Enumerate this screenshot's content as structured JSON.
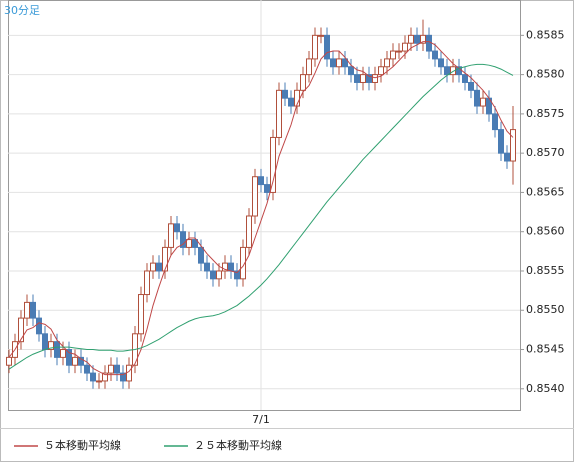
{
  "chart_data": {
    "type": "candlestick",
    "title": "30分足",
    "categories": [
      null,
      null,
      null,
      null,
      null,
      null,
      null,
      null,
      null,
      null,
      null,
      null,
      null,
      null,
      null,
      null,
      null,
      null,
      null,
      null,
      null,
      null,
      null,
      null,
      null,
      null,
      null,
      null,
      null,
      null,
      null,
      null,
      null,
      null,
      null,
      null,
      null,
      null,
      null,
      null,
      null,
      null,
      "7/1",
      null,
      null,
      null,
      null,
      null,
      null,
      null,
      null,
      null,
      null,
      null,
      null,
      null,
      null,
      null,
      null,
      null,
      null,
      null,
      null,
      null,
      null,
      null,
      null,
      null,
      null,
      null,
      null,
      null,
      null,
      null,
      null,
      null,
      null,
      null,
      null,
      null,
      null,
      null,
      null,
      null,
      null
    ],
    "open": [
      0.8543,
      0.8544,
      0.8546,
      0.8549,
      0.8551,
      0.8549,
      0.8547,
      0.8545,
      0.8546,
      0.8544,
      0.8545,
      0.8543,
      0.8544,
      0.8543,
      0.8542,
      0.8541,
      0.8541,
      0.8542,
      0.8543,
      0.8542,
      0.8541,
      0.8543,
      0.8547,
      0.8552,
      0.8555,
      0.8556,
      0.8555,
      0.8558,
      0.8561,
      0.856,
      0.8558,
      0.8559,
      0.8558,
      0.8556,
      0.8555,
      0.8554,
      0.8555,
      0.8556,
      0.8555,
      0.8554,
      0.8558,
      0.8562,
      0.8567,
      0.8566,
      0.8565,
      0.8572,
      0.8578,
      0.8577,
      0.8576,
      0.8578,
      0.858,
      0.8582,
      0.8585,
      0.8585,
      0.8582,
      0.8581,
      0.8582,
      0.8581,
      0.858,
      0.8579,
      0.858,
      0.8579,
      0.858,
      0.8581,
      0.8582,
      0.8583,
      0.8583,
      0.8584,
      0.8585,
      0.8584,
      0.8585,
      0.8583,
      0.8582,
      0.8581,
      0.858,
      0.8581,
      0.858,
      0.8579,
      0.8578,
      0.8576,
      0.8577,
      0.8575,
      0.8573,
      0.857,
      0.8569
    ],
    "high": [
      0.8545,
      0.8547,
      0.855,
      0.8552,
      0.8552,
      0.855,
      0.8548,
      0.8547,
      0.8547,
      0.8546,
      0.8546,
      0.8545,
      0.8545,
      0.8544,
      0.8543,
      0.8542,
      0.8543,
      0.8544,
      0.8544,
      0.8543,
      0.8544,
      0.8548,
      0.8553,
      0.8556,
      0.8557,
      0.8557,
      0.8559,
      0.8562,
      0.8562,
      0.8561,
      0.856,
      0.856,
      0.8559,
      0.8557,
      0.8556,
      0.8556,
      0.8557,
      0.8557,
      0.8556,
      0.8559,
      0.8563,
      0.8568,
      0.8568,
      0.8567,
      0.8573,
      0.8579,
      0.8579,
      0.8578,
      0.8579,
      0.8581,
      0.8583,
      0.8586,
      0.8586,
      0.8586,
      0.8583,
      0.8583,
      0.8583,
      0.8582,
      0.8581,
      0.8581,
      0.8581,
      0.8581,
      0.8582,
      0.8583,
      0.8584,
      0.8584,
      0.8585,
      0.8586,
      0.8586,
      0.8587,
      0.8586,
      0.8584,
      0.8583,
      0.8582,
      0.8582,
      0.8582,
      0.8581,
      0.858,
      0.8579,
      0.8578,
      0.8578,
      0.8576,
      0.8574,
      0.8571,
      0.8576
    ],
    "low": [
      0.8542,
      0.8543,
      0.8545,
      0.8548,
      0.8548,
      0.8546,
      0.8544,
      0.8544,
      0.8543,
      0.8543,
      0.8542,
      0.8542,
      0.8542,
      0.8541,
      0.854,
      0.854,
      0.854,
      0.8541,
      0.8541,
      0.854,
      0.854,
      0.8542,
      0.8546,
      0.8551,
      0.8554,
      0.8554,
      0.8554,
      0.8557,
      0.8559,
      0.8557,
      0.8557,
      0.8557,
      0.8555,
      0.8554,
      0.8553,
      0.8553,
      0.8554,
      0.8554,
      0.8553,
      0.8553,
      0.8557,
      0.8561,
      0.8565,
      0.8564,
      0.8564,
      0.8571,
      0.8576,
      0.8575,
      0.8575,
      0.8577,
      0.8579,
      0.8581,
      0.8584,
      0.8581,
      0.858,
      0.858,
      0.858,
      0.8579,
      0.8578,
      0.8578,
      0.8578,
      0.8578,
      0.8579,
      0.858,
      0.8581,
      0.8582,
      0.8582,
      0.8583,
      0.8583,
      0.8583,
      0.8582,
      0.8581,
      0.858,
      0.8579,
      0.8579,
      0.8579,
      0.8578,
      0.8577,
      0.8575,
      0.8575,
      0.8574,
      0.8572,
      0.8569,
      0.8568,
      0.8566
    ],
    "close": [
      0.8544,
      0.8546,
      0.8549,
      0.8551,
      0.8549,
      0.8547,
      0.8545,
      0.8546,
      0.8544,
      0.8545,
      0.8543,
      0.8544,
      0.8543,
      0.8542,
      0.8541,
      0.8541,
      0.8542,
      0.8543,
      0.8542,
      0.8541,
      0.8543,
      0.8547,
      0.8552,
      0.8555,
      0.8556,
      0.8555,
      0.8558,
      0.8561,
      0.856,
      0.8558,
      0.8559,
      0.8558,
      0.8556,
      0.8555,
      0.8554,
      0.8555,
      0.8556,
      0.8555,
      0.8554,
      0.8558,
      0.8562,
      0.8567,
      0.8566,
      0.8565,
      0.8572,
      0.8578,
      0.8577,
      0.8576,
      0.8578,
      0.858,
      0.8582,
      0.8585,
      0.8585,
      0.8582,
      0.8581,
      0.8582,
      0.8581,
      0.858,
      0.8579,
      0.858,
      0.8579,
      0.858,
      0.8581,
      0.8582,
      0.8583,
      0.8583,
      0.8584,
      0.8585,
      0.8584,
      0.8585,
      0.8583,
      0.8582,
      0.8581,
      0.858,
      0.8581,
      0.858,
      0.8579,
      0.8578,
      0.8576,
      0.8577,
      0.8575,
      0.8573,
      0.857,
      0.8569,
      0.8573
    ],
    "up_color": "#b0503c",
    "down_color": "#4a7cb4",
    "series": [
      {
        "name": "５本移動平均線",
        "color": "#c04848",
        "values": [
          0.8544,
          0.8545,
          0.85463,
          0.85475,
          0.85478,
          0.85484,
          0.85482,
          0.85476,
          0.85462,
          0.85454,
          0.85446,
          0.85444,
          0.85438,
          0.85434,
          0.85426,
          0.85422,
          0.85418,
          0.85418,
          0.85418,
          0.85418,
          0.85422,
          0.85432,
          0.8545,
          0.85476,
          0.85506,
          0.8553,
          0.85552,
          0.8557,
          0.8558,
          0.85584,
          0.85592,
          0.85592,
          0.85582,
          0.85572,
          0.85564,
          0.85556,
          0.85552,
          0.8555,
          0.85548,
          0.85556,
          0.8557,
          0.85592,
          0.85614,
          0.85636,
          0.85664,
          0.85696,
          0.85716,
          0.85736,
          0.85762,
          0.85778,
          0.85786,
          0.85802,
          0.8582,
          0.85828,
          0.8583,
          0.8583,
          0.85822,
          0.85812,
          0.85806,
          0.85804,
          0.85798,
          0.85796,
          0.85798,
          0.85804,
          0.8581,
          0.85818,
          0.85826,
          0.85834,
          0.85838,
          0.85842,
          0.85842,
          0.85838,
          0.8583,
          0.85822,
          0.85814,
          0.85808,
          0.85802,
          0.85796,
          0.85788,
          0.8578,
          0.8577,
          0.85758,
          0.85742,
          0.85728,
          0.8572
        ]
      },
      {
        "name": "２５本移動平均線",
        "color": "#30a070",
        "values": [
          0.85425,
          0.8543,
          0.85435,
          0.8544,
          0.85444,
          0.85447,
          0.8545,
          0.85452,
          0.85453,
          0.85453,
          0.85453,
          0.85452,
          0.85451,
          0.8545,
          0.8545,
          0.85449,
          0.85449,
          0.85449,
          0.85448,
          0.85448,
          0.85449,
          0.8545,
          0.85452,
          0.85455,
          0.85459,
          0.85463,
          0.85468,
          0.85473,
          0.85478,
          0.85482,
          0.85486,
          0.85489,
          0.85491,
          0.85492,
          0.85493,
          0.85495,
          0.85498,
          0.85502,
          0.85506,
          0.85512,
          0.85518,
          0.85525,
          0.85532,
          0.8554,
          0.85549,
          0.85558,
          0.85568,
          0.85578,
          0.85588,
          0.85598,
          0.85608,
          0.85618,
          0.85628,
          0.85638,
          0.85647,
          0.85656,
          0.85665,
          0.85674,
          0.85683,
          0.85692,
          0.857,
          0.85708,
          0.85716,
          0.85724,
          0.85732,
          0.8574,
          0.85748,
          0.85756,
          0.85764,
          0.85772,
          0.85779,
          0.85786,
          0.85793,
          0.85799,
          0.85804,
          0.85808,
          0.8581,
          0.85812,
          0.85813,
          0.85813,
          0.85812,
          0.8581,
          0.85807,
          0.85803,
          0.85799
        ]
      }
    ],
    "ylim": [
      0.85373,
      0.85895
    ],
    "yticks": [
      {
        "value": 0.854,
        "label": "0.8540"
      },
      {
        "value": 0.8545,
        "label": "0.8545"
      },
      {
        "value": 0.855,
        "label": "0.8550"
      },
      {
        "value": 0.8555,
        "label": "0.8555"
      },
      {
        "value": 0.856,
        "label": "0.8560"
      },
      {
        "value": 0.8565,
        "label": "0.8565"
      },
      {
        "value": 0.857,
        "label": "0.8570"
      },
      {
        "value": 0.8575,
        "label": "0.8575"
      },
      {
        "value": 0.858,
        "label": "0.8580"
      },
      {
        "value": 0.8585,
        "label": "0.8585"
      }
    ],
    "grid": true
  }
}
